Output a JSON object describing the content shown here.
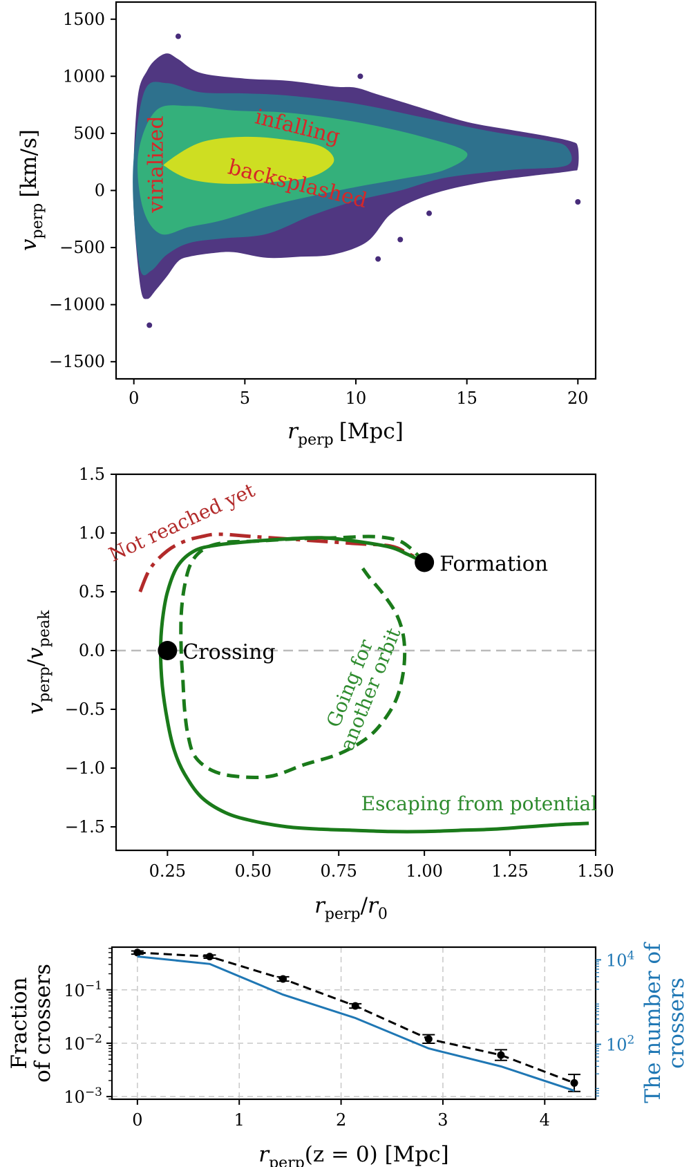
{
  "chart_data": [
    {
      "type": "heatmap",
      "title": "",
      "xlabel": {
        "var": "r",
        "sub": "perp",
        "unit": "[Mpc]"
      },
      "ylabel": {
        "var": "v",
        "sub": "perp",
        "unit": "[km/s]"
      },
      "xlim": [
        -0.8,
        20.8
      ],
      "ylim": [
        -1650,
        1650
      ],
      "xticks": [
        "0",
        "5",
        "10",
        "15",
        "20"
      ],
      "yticks": [
        "1500",
        "1000",
        "500",
        "0",
        "−500",
        "−1000",
        "−1500"
      ],
      "annotations": [
        {
          "text": "infalling",
          "x": 7.3,
          "y": 500,
          "rotation": 14,
          "color": "#d62728"
        },
        {
          "text": "backsplashed",
          "x": 7.3,
          "y": 0,
          "rotation": 14,
          "color": "#d62728"
        },
        {
          "text": "virialized",
          "x": 1.3,
          "y": 230,
          "rotation": -90,
          "color": "#d62728"
        }
      ],
      "colormap": "viridis",
      "density_regions": [
        {
          "name": "outer",
          "color": "#472c7a",
          "outline_r": [
            0.0,
            0.2,
            0.6,
            1.0,
            1.5,
            2.0,
            3,
            5,
            7,
            9,
            10,
            11,
            13,
            15,
            17,
            18.5,
            19.7,
            20,
            20,
            19.7,
            18,
            16,
            14,
            12.5,
            11.5,
            10.5,
            9,
            7.5,
            6,
            4.5,
            3.5,
            2.5,
            2.0,
            1.5,
            1.0,
            0.6,
            0.3,
            0.0
          ],
          "outline_v": [
            300,
            850,
            1050,
            1150,
            1200,
            1150,
            1030,
            980,
            960,
            910,
            900,
            840,
            720,
            600,
            530,
            480,
            430,
            380,
            200,
            170,
            130,
            80,
            0,
            -100,
            -220,
            -450,
            -560,
            -580,
            -590,
            -540,
            -550,
            -580,
            -620,
            -750,
            -870,
            -950,
            -850,
            -200
          ]
        },
        {
          "name": "mid",
          "color": "#2a788e",
          "outline_r": [
            0.0,
            0.5,
            1.5,
            3,
            5,
            7,
            10,
            13,
            16,
            18.5,
            19.5,
            19.5,
            17,
            14,
            12,
            10,
            8,
            6,
            4,
            2.5,
            1.5,
            0.8,
            0.3,
            0.0
          ],
          "outline_v": [
            300,
            880,
            940,
            860,
            850,
            830,
            760,
            640,
            520,
            440,
            380,
            220,
            180,
            110,
            0,
            -90,
            -220,
            -380,
            -420,
            -460,
            -560,
            -700,
            -700,
            -200
          ]
        },
        {
          "name": "inner",
          "color": "#35b779",
          "outline_r": [
            0.2,
            1.0,
            2.5,
            4.5,
            7,
            10,
            13,
            15,
            14,
            12,
            10,
            8,
            6,
            4,
            2.5,
            1.2,
            0.4
          ],
          "outline_v": [
            320,
            700,
            740,
            700,
            680,
            600,
            470,
            330,
            180,
            100,
            30,
            -50,
            -140,
            -260,
            -320,
            -380,
            -150
          ]
        },
        {
          "name": "core",
          "color": "#dfe318",
          "outline_r": [
            1.5,
            3,
            5,
            7,
            8.5,
            9,
            8,
            6,
            4,
            2.5,
            1.5
          ],
          "outline_v": [
            250,
            420,
            470,
            440,
            380,
            250,
            120,
            70,
            60,
            100,
            200
          ]
        }
      ],
      "outlier_points": [
        {
          "r": 2.0,
          "v": 1350
        },
        {
          "r": 10.2,
          "v": 1000
        },
        {
          "r": 0.7,
          "v": -1180
        },
        {
          "r": 20.0,
          "v": -100
        },
        {
          "r": 13.3,
          "v": -200
        },
        {
          "r": 12.0,
          "v": -430
        },
        {
          "r": 11.0,
          "v": -600
        }
      ]
    },
    {
      "type": "line",
      "xlabel": {
        "var": "r",
        "sub": "perp",
        "den": "r",
        "densub": "0"
      },
      "ylabel": {
        "var": "v",
        "sub": "perp",
        "den": "v",
        "densub": "peak"
      },
      "xlim": [
        0.1,
        1.5
      ],
      "ylim": [
        -1.7,
        1.5
      ],
      "xticks": [
        "0.25",
        "0.50",
        "0.75",
        "1.00",
        "1.25",
        "1.50"
      ],
      "yticks": [
        "1.5",
        "1.0",
        "0.5",
        "0.0",
        "−0.5",
        "−1.0",
        "−1.5"
      ],
      "reference_line": {
        "y": 0.0,
        "color": "#bbbbbb",
        "dashed": true
      },
      "series": [
        {
          "name": "Not reached yet",
          "color": "#b22a2a",
          "style": "dashdot",
          "x": [
            0.17,
            0.2,
            0.25,
            0.3,
            0.35,
            0.4,
            0.5,
            0.6,
            0.7,
            0.8,
            0.9,
            0.95,
            1.0
          ],
          "y": [
            0.5,
            0.7,
            0.85,
            0.93,
            0.97,
            0.99,
            0.97,
            0.95,
            0.93,
            0.91,
            0.89,
            0.83,
            0.75
          ]
        },
        {
          "name": "Escaping from potential",
          "color": "#1a7a1a",
          "style": "solid",
          "x": [
            1.0,
            0.95,
            0.9,
            0.8,
            0.7,
            0.6,
            0.5,
            0.4,
            0.33,
            0.28,
            0.25,
            0.235,
            0.23,
            0.235,
            0.25,
            0.27,
            0.3,
            0.35,
            0.42,
            0.5,
            0.6,
            0.7,
            0.8,
            0.9,
            1.0,
            1.1,
            1.2,
            1.3,
            1.4,
            1.48
          ],
          "y": [
            0.75,
            0.82,
            0.88,
            0.93,
            0.96,
            0.95,
            0.93,
            0.9,
            0.85,
            0.72,
            0.5,
            0.25,
            0.0,
            -0.3,
            -0.6,
            -0.85,
            -1.05,
            -1.25,
            -1.38,
            -1.45,
            -1.5,
            -1.52,
            -1.53,
            -1.54,
            -1.54,
            -1.53,
            -1.52,
            -1.5,
            -1.48,
            -1.47
          ]
        },
        {
          "name": "Going for another orbit",
          "color": "#1a7a1a",
          "style": "dashed",
          "x": [
            1.0,
            0.96,
            0.92,
            0.85,
            0.75,
            0.62,
            0.5,
            0.42,
            0.36,
            0.32,
            0.3,
            0.29,
            0.29,
            0.295,
            0.3,
            0.31,
            0.33,
            0.38,
            0.45,
            0.55,
            0.65,
            0.75,
            0.83,
            0.88,
            0.92,
            0.94,
            0.94,
            0.92,
            0.88,
            0.84,
            0.82
          ],
          "y": [
            0.75,
            0.87,
            0.94,
            0.97,
            0.96,
            0.95,
            0.93,
            0.92,
            0.87,
            0.75,
            0.55,
            0.3,
            0.0,
            -0.25,
            -0.5,
            -0.72,
            -0.9,
            -1.02,
            -1.07,
            -1.07,
            -0.97,
            -0.88,
            -0.75,
            -0.6,
            -0.4,
            -0.15,
            0.1,
            0.3,
            0.48,
            0.62,
            0.7
          ]
        }
      ],
      "markers": [
        {
          "label": "Formation",
          "x": 1.0,
          "y": 0.75
        },
        {
          "label": "Crossing",
          "x": 0.25,
          "y": 0.0
        }
      ],
      "annotations": [
        {
          "text": "Not reached yet",
          "x": 0.3,
          "y": 1.04,
          "rotation": -25,
          "color": "#b22a2a"
        },
        {
          "text": "Escaping from potential",
          "x": 1.16,
          "y": -1.36,
          "rotation": 0,
          "color": "#2e8b2e"
        },
        {
          "text": "Going for",
          "x": 0.8,
          "y": -0.3,
          "rotation": -68,
          "color": "#2e8b2e"
        },
        {
          "text": "another orbit",
          "x": 0.86,
          "y": -0.35,
          "rotation": -68,
          "color": "#2e8b2e"
        }
      ]
    },
    {
      "type": "line",
      "xlabel": {
        "var": "r",
        "sub": "perp",
        "tail": "(z = 0) [Mpc]"
      },
      "ylabel": [
        "Fraction",
        "of crossers"
      ],
      "ylabel_right": [
        "The number of",
        "crossers"
      ],
      "xlim": [
        -0.25,
        4.5
      ],
      "ylim_log10": [
        -3.05,
        -0.2
      ],
      "ylim_right_log10": [
        0.7,
        4.3
      ],
      "xticks": [
        "0",
        "1",
        "2",
        "3",
        "4"
      ],
      "yticks": [
        {
          "base": "10",
          "exp": "−1",
          "v": -1
        },
        {
          "base": "10",
          "exp": "−2",
          "v": -2
        },
        {
          "base": "10",
          "exp": "−3",
          "v": -3
        }
      ],
      "yticks_right": [
        {
          "base": "10",
          "exp": "4",
          "v": 4
        },
        {
          "base": "10",
          "exp": "2",
          "v": 2
        }
      ],
      "grid": true,
      "right_axis_color": "#1f77b4",
      "series": [
        {
          "name": "Fraction of crossers",
          "axis": "left",
          "color": "#000000",
          "style": "dashed",
          "marker": "circle",
          "errorbars": true,
          "x": [
            0.0,
            0.71,
            1.43,
            2.14,
            2.86,
            3.57,
            4.29
          ],
          "y": [
            0.5,
            0.42,
            0.16,
            0.05,
            0.012,
            0.006,
            0.0018
          ],
          "yerr_log10": [
            0.03,
            0.03,
            0.04,
            0.04,
            0.08,
            0.1,
            0.16
          ]
        },
        {
          "name": "The number of crossers",
          "axis": "right",
          "color": "#1f77b4",
          "style": "solid",
          "x": [
            0.0,
            0.71,
            1.43,
            2.14,
            2.86,
            3.57,
            4.29
          ],
          "y": [
            12000,
            8000,
            1500,
            420,
            80,
            30,
            8
          ]
        }
      ]
    }
  ]
}
